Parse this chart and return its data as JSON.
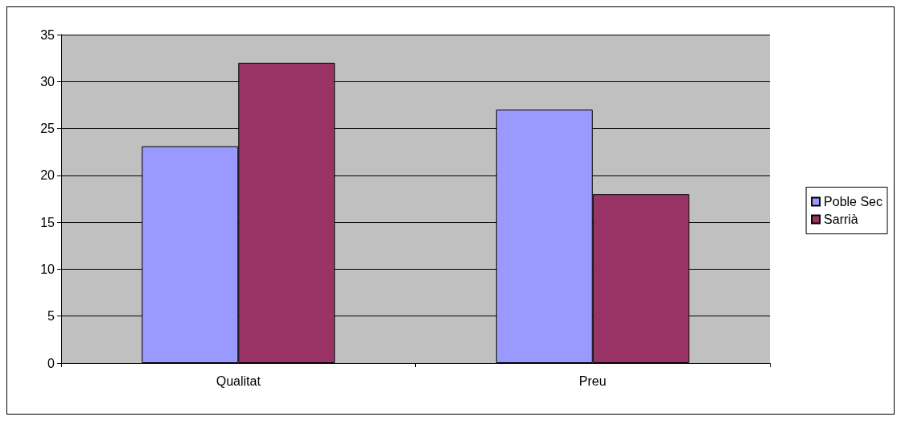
{
  "chart_data": {
    "type": "bar",
    "categories": [
      "Qualitat",
      "Preu"
    ],
    "series": [
      {
        "name": "Poble Sec",
        "color": "#9999ff",
        "values": [
          23.1,
          27
        ]
      },
      {
        "name": "Sarrià",
        "color": "#993366",
        "values": [
          32,
          18
        ]
      }
    ],
    "ylim": [
      0,
      35
    ],
    "yticks": [
      0,
      5,
      10,
      15,
      20,
      25,
      30,
      35
    ],
    "grid": "y",
    "legend": "right"
  }
}
